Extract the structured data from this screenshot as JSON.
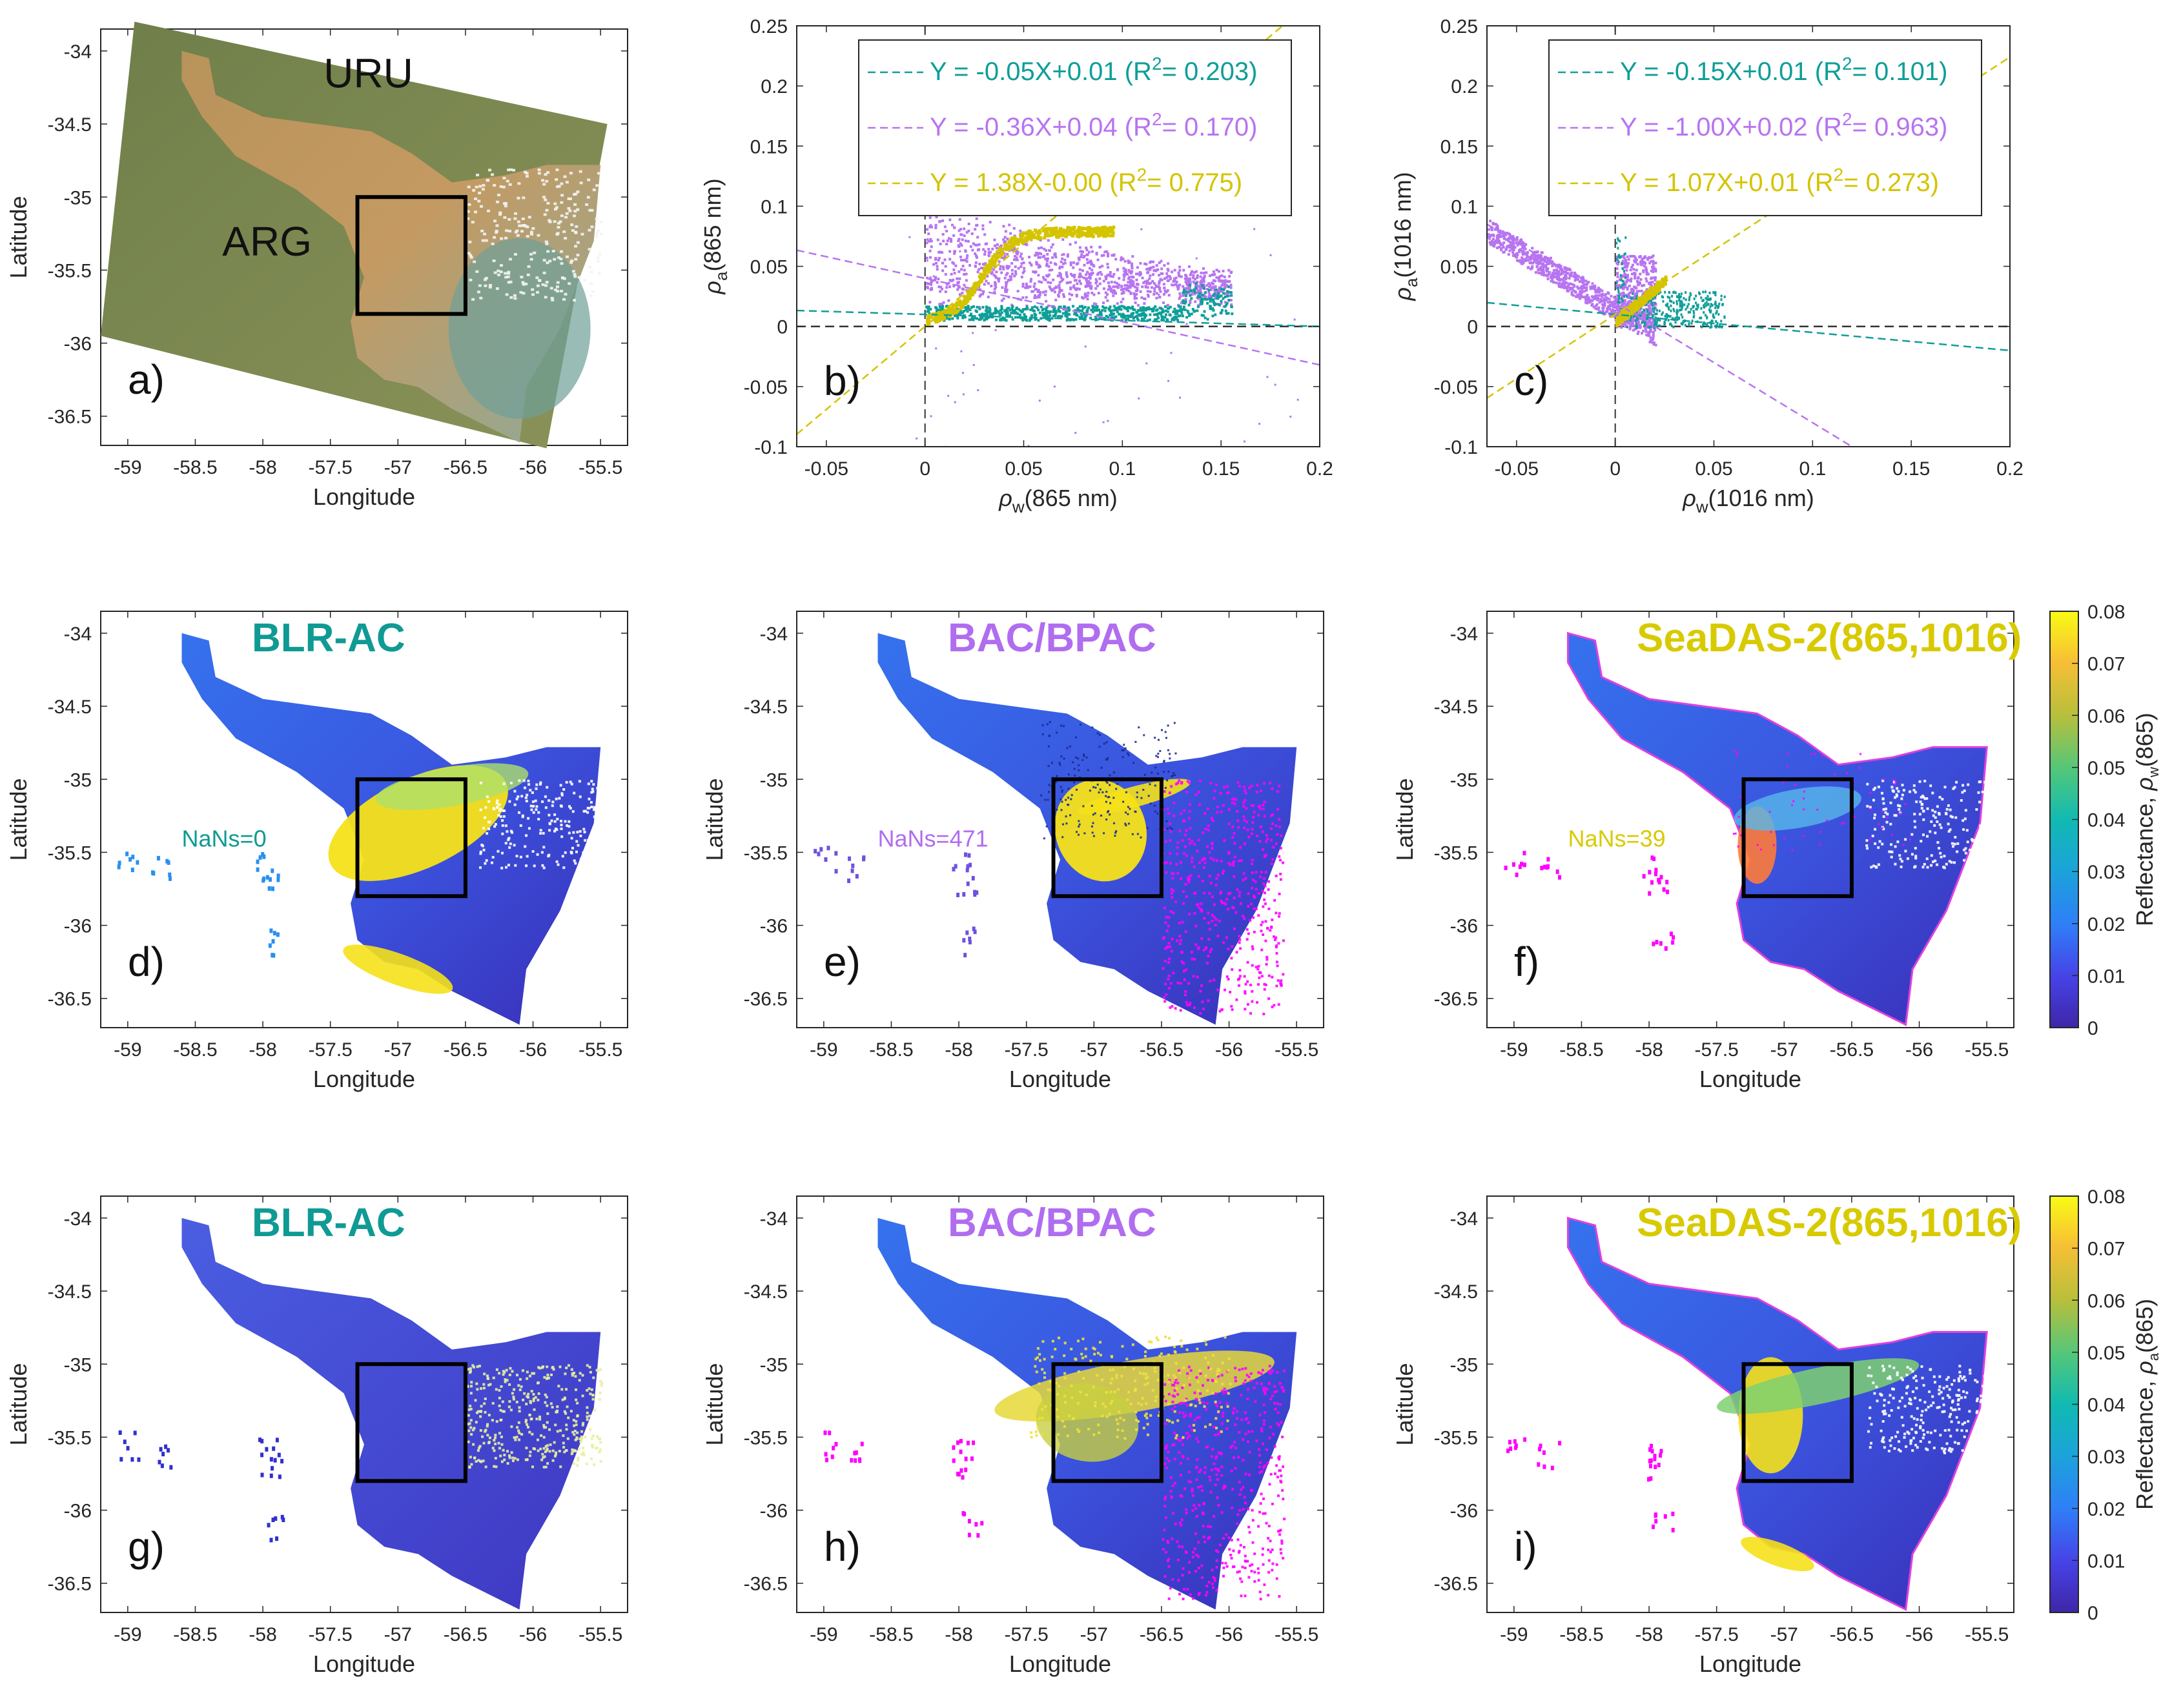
{
  "colors": {
    "teal": "#0e9e98",
    "purple": "#b774f0",
    "yellow": "#d4c400",
    "title_teal": "#0f9a94",
    "title_purple": "#b06df0",
    "title_yellow": "#d8ca00",
    "frame": "#000000",
    "magenta": "#ff00ff"
  },
  "panels": {
    "a": {
      "label": "a)",
      "xlabel": "Longitude",
      "ylabel": "Latitude",
      "region_labels": [
        "URU",
        "ARG"
      ],
      "xticks": [
        "-59",
        "-58.5",
        "-58",
        "-57.5",
        "-57",
        "-56.5",
        "-56",
        "-55.5"
      ],
      "yticks": [
        "-34",
        "-34.5",
        "-35",
        "-35.5",
        "-36",
        "-36.5"
      ]
    },
    "b": {
      "label": "b)"
    },
    "c": {
      "label": "c)"
    },
    "d": {
      "label": "d)",
      "title": "BLR-AC",
      "nans": "NaNs=0"
    },
    "e": {
      "label": "e)",
      "title": "BAC/BPAC",
      "nans": "NaNs=471"
    },
    "f": {
      "label": "f)",
      "title": "SeaDAS-2(865,1016)",
      "nans": "NaNs=39"
    },
    "g": {
      "label": "g)",
      "title": "BLR-AC"
    },
    "h": {
      "label": "h)",
      "title": "BAC/BPAC"
    },
    "i": {
      "label": "i)",
      "title": "SeaDAS-2(865,1016)"
    }
  },
  "map_axes": {
    "xlabel": "Longitude",
    "ylabel": "Latitude",
    "xticks": [
      "-59",
      "-58.5",
      "-58",
      "-57.5",
      "-57",
      "-56.5",
      "-56",
      "-55.5"
    ],
    "yticks": [
      "-34",
      "-34.5",
      "-35",
      "-35.5",
      "-36",
      "-36.5"
    ],
    "box_lon": [
      -57.3,
      -56.5
    ],
    "box_lat": [
      -35.0,
      -35.8
    ]
  },
  "colorbars": [
    {
      "label_main": "Reflectance, ",
      "label_sym": "ρ",
      "label_sub": "w",
      "label_tail": "(865)",
      "ticks": [
        "0.08",
        "0.07",
        "0.06",
        "0.05",
        "0.04",
        "0.03",
        "0.02",
        "0.01",
        "0"
      ]
    },
    {
      "label_main": "Reflectance, ",
      "label_sym": "ρ",
      "label_sub": "a",
      "label_tail": "(865)",
      "ticks": [
        "0.08",
        "0.07",
        "0.06",
        "0.05",
        "0.04",
        "0.03",
        "0.02",
        "0.01",
        "0"
      ]
    }
  ],
  "chart_data": [
    {
      "id": "b",
      "type": "scatter",
      "xlabel_sym": "ρ",
      "xlabel_sub": "w",
      "xlabel_tail": "(865 nm)",
      "ylabel_sym": "ρ",
      "ylabel_sub": "a",
      "ylabel_tail": "(865 nm)",
      "xlim": [
        -0.065,
        0.2
      ],
      "ylim": [
        -0.1,
        0.25
      ],
      "xticks": [
        "-0.05",
        "0",
        "0.05",
        "0.1",
        "0.15",
        "0.2"
      ],
      "yticks": [
        "0.25",
        "0.2",
        "0.15",
        "0.1",
        "0.05",
        "0",
        "-0.05",
        "-0.1"
      ],
      "fits": [
        {
          "name": "BLR-AC",
          "slope": -0.05,
          "intercept": 0.01,
          "label_main": "Y = -0.05X+0.01 (R",
          "label_sup": "2",
          "label_tail": "= 0.203)"
        },
        {
          "name": "BAC/BPAC",
          "slope": -0.36,
          "intercept": 0.04,
          "label_main": "Y = -0.36X+0.04 (R",
          "label_sup": "2",
          "label_tail": "= 0.170)"
        },
        {
          "name": "SeaDAS-2",
          "slope": 1.38,
          "intercept": 0.0,
          "label_main": "Y = 1.38X-0.00 (R",
          "label_sup": "2",
          "label_tail": "= 0.775)"
        }
      ]
    },
    {
      "id": "c",
      "type": "scatter",
      "xlabel_sym": "ρ",
      "xlabel_sub": "w",
      "xlabel_tail": "(1016 nm)",
      "ylabel_sym": "ρ",
      "ylabel_sub": "a",
      "ylabel_tail": "(1016 nm)",
      "xlim": [
        -0.065,
        0.2
      ],
      "ylim": [
        -0.1,
        0.25
      ],
      "xticks": [
        "-0.05",
        "0",
        "0.05",
        "0.1",
        "0.15",
        "0.2"
      ],
      "yticks": [
        "0.25",
        "0.2",
        "0.15",
        "0.1",
        "0.05",
        "0",
        "-0.05",
        "-0.1"
      ],
      "fits": [
        {
          "name": "BLR-AC",
          "slope": -0.15,
          "intercept": 0.01,
          "label_main": "Y = -0.15X+0.01 (R",
          "label_sup": "2",
          "label_tail": "= 0.101)"
        },
        {
          "name": "BAC/BPAC",
          "slope": -1.0,
          "intercept": 0.02,
          "label_main": "Y = -1.00X+0.02 (R",
          "label_sup": "2",
          "label_tail": "= 0.963)"
        },
        {
          "name": "SeaDAS-2",
          "slope": 1.07,
          "intercept": 0.01,
          "label_main": "Y = 1.07X+0.01 (R",
          "label_sup": "2",
          "label_tail": "= 0.273)"
        }
      ]
    }
  ]
}
